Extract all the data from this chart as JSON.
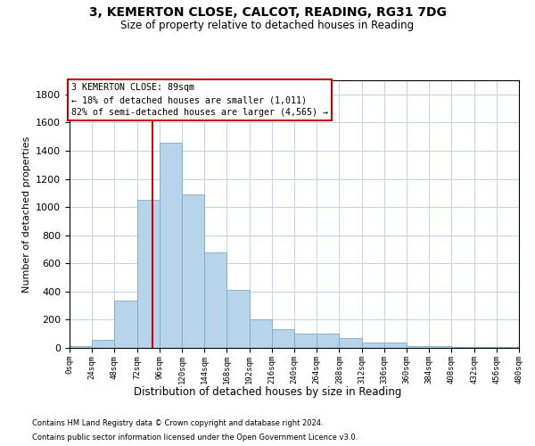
{
  "title": "3, KEMERTON CLOSE, CALCOT, READING, RG31 7DG",
  "subtitle": "Size of property relative to detached houses in Reading",
  "xlabel": "Distribution of detached houses by size in Reading",
  "ylabel": "Number of detached properties",
  "bar_color": "#b8d4ea",
  "bar_edge_color": "#7aaac8",
  "background_color": "#ffffff",
  "grid_color": "#c0d4e8",
  "vline_x": 89,
  "vline_color": "#cc0000",
  "annotation_text": "3 KEMERTON CLOSE: 89sqm\n← 18% of detached houses are smaller (1,011)\n82% of semi-detached houses are larger (4,565) →",
  "annotation_box_edgecolor": "#cc0000",
  "footnote1": "Contains HM Land Registry data © Crown copyright and database right 2024.",
  "footnote2": "Contains public sector information licensed under the Open Government Licence v3.0.",
  "bin_starts": [
    0,
    24,
    48,
    72,
    96,
    120,
    144,
    168,
    192,
    216,
    240,
    264,
    288,
    312,
    336,
    360,
    384,
    408,
    432,
    456
  ],
  "bin_width": 24,
  "counts": [
    10,
    55,
    335,
    1050,
    1455,
    1090,
    680,
    410,
    200,
    130,
    100,
    100,
    70,
    40,
    40,
    12,
    12,
    5,
    5,
    5
  ],
  "ylim": [
    0,
    1900
  ],
  "yticks": [
    0,
    200,
    400,
    600,
    800,
    1000,
    1200,
    1400,
    1600,
    1800
  ],
  "xtick_labels": [
    "0sqm",
    "24sqm",
    "48sqm",
    "72sqm",
    "96sqm",
    "120sqm",
    "144sqm",
    "168sqm",
    "192sqm",
    "216sqm",
    "240sqm",
    "264sqm",
    "288sqm",
    "312sqm",
    "336sqm",
    "360sqm",
    "384sqm",
    "408sqm",
    "432sqm",
    "456sqm",
    "480sqm"
  ]
}
